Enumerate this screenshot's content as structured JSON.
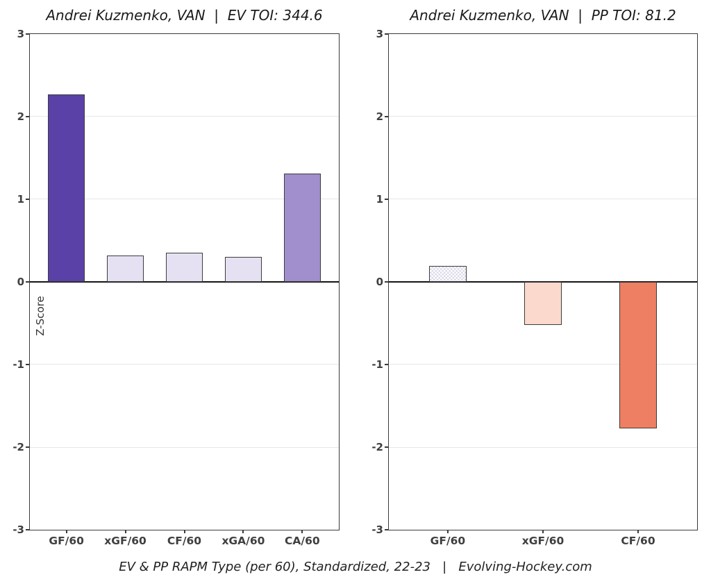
{
  "figure": {
    "ylabel": "Z-Score",
    "caption": "EV & PP RAPM Type (per 60), Standardized, 22-23   |   Evolving-Hockey.com",
    "hatch_color": "#dcd9ea",
    "axis_color": "#3a3a3a",
    "zero_line_color": "#141414",
    "gridline_color": "#e7e7e7"
  },
  "chart_data": [
    {
      "type": "bar",
      "title": "Andrei Kuzmenko, VAN  |  EV TOI: 344.6",
      "player": "Andrei Kuzmenko",
      "team": "VAN",
      "strength_label": "EV TOI",
      "toi": 344.6,
      "categories": [
        "GF/60",
        "xGF/60",
        "CF/60",
        "xGA/60",
        "CA/60"
      ],
      "values": [
        2.27,
        0.32,
        0.35,
        0.3,
        1.31
      ],
      "bar_colors": [
        "#5a41a8",
        "#e6e1f2",
        "#e6e1f2",
        "#e6e1f2",
        "#a18ecd"
      ],
      "hatched": [
        false,
        false,
        false,
        false,
        false
      ],
      "ylabel": "Z-Score",
      "ylim": [
        -3,
        3
      ],
      "yticks": [
        3,
        2,
        1,
        0,
        -1,
        -2,
        -3
      ],
      "grid": true,
      "legend": "none"
    },
    {
      "type": "bar",
      "title": "Andrei Kuzmenko, VAN  |  PP TOI: 81.2",
      "player": "Andrei Kuzmenko",
      "team": "VAN",
      "strength_label": "PP TOI",
      "toi": 81.2,
      "categories": [
        "GF/60",
        "xGF/60",
        "CF/60"
      ],
      "values": [
        0.19,
        -0.52,
        -1.77
      ],
      "bar_colors": [
        "#ffffff",
        "#fcd9cd",
        "#ee7f63"
      ],
      "hatched": [
        true,
        false,
        false
      ],
      "ylabel": "",
      "ylim": [
        -3,
        3
      ],
      "yticks": [
        3,
        2,
        1,
        0,
        -1,
        -2,
        -3
      ],
      "grid": true,
      "legend": "none"
    }
  ]
}
